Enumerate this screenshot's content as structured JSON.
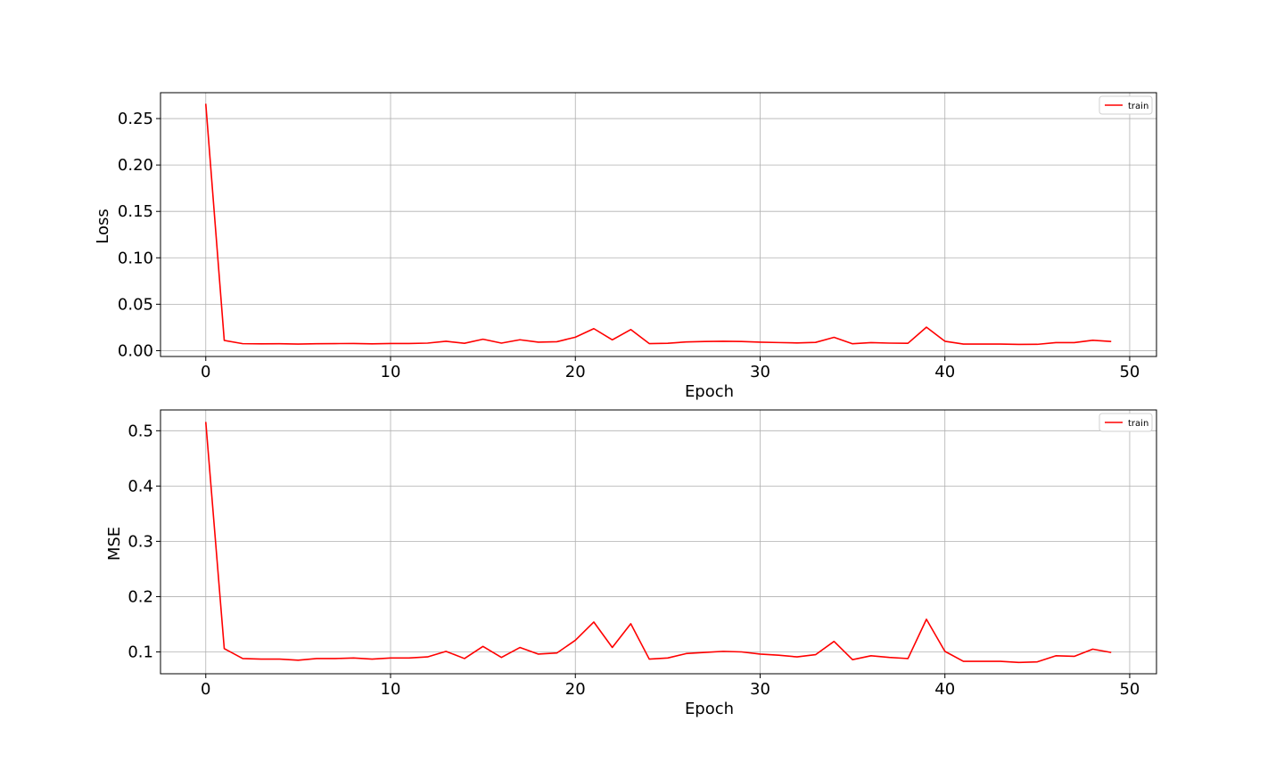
{
  "figure": {
    "background": "#ffffff"
  },
  "chart_data": [
    {
      "type": "line",
      "title": "",
      "xlabel": "Epoch",
      "ylabel": "Loss",
      "xlim": [
        -2.45,
        51.45
      ],
      "ylim": [
        -0.0063,
        0.2779
      ],
      "xticks": [
        0,
        10,
        20,
        30,
        40,
        50
      ],
      "xtick_labels": [
        "0",
        "10",
        "20",
        "30",
        "40",
        "50"
      ],
      "yticks": [
        0.0,
        0.05,
        0.1,
        0.15,
        0.2,
        0.25
      ],
      "ytick_labels": [
        "0.00",
        "0.05",
        "0.10",
        "0.15",
        "0.20",
        "0.25"
      ],
      "grid": true,
      "legend_position": "top-right",
      "series": [
        {
          "name": "train",
          "color": "#ff0000",
          "x": [
            0,
            1,
            2,
            3,
            4,
            5,
            6,
            7,
            8,
            9,
            10,
            11,
            12,
            13,
            14,
            15,
            16,
            17,
            18,
            19,
            20,
            21,
            22,
            23,
            24,
            25,
            26,
            27,
            28,
            29,
            30,
            31,
            32,
            33,
            34,
            35,
            36,
            37,
            38,
            39,
            40,
            41,
            42,
            43,
            44,
            45,
            46,
            47,
            48,
            49
          ],
          "values": [
            0.266,
            0.011,
            0.0075,
            0.0073,
            0.0074,
            0.0071,
            0.0074,
            0.0076,
            0.0077,
            0.0073,
            0.0077,
            0.0077,
            0.0081,
            0.0101,
            0.0079,
            0.0123,
            0.0081,
            0.0117,
            0.0091,
            0.0096,
            0.0145,
            0.0237,
            0.0116,
            0.0227,
            0.0076,
            0.0079,
            0.0094,
            0.0098,
            0.0101,
            0.0098,
            0.0091,
            0.0087,
            0.0083,
            0.0089,
            0.0143,
            0.0074,
            0.0086,
            0.0081,
            0.0079,
            0.0253,
            0.0101,
            0.0071,
            0.0071,
            0.0071,
            0.0067,
            0.0068,
            0.0086,
            0.0086,
            0.0112,
            0.0098
          ]
        }
      ]
    },
    {
      "type": "line",
      "title": "",
      "xlabel": "Epoch",
      "ylabel": "MSE",
      "xlim": [
        -2.45,
        51.45
      ],
      "ylim": [
        0.0605,
        0.5376
      ],
      "xticks": [
        0,
        10,
        20,
        30,
        40,
        50
      ],
      "xtick_labels": [
        "0",
        "10",
        "20",
        "30",
        "40",
        "50"
      ],
      "yticks": [
        0.1,
        0.2,
        0.3,
        0.4,
        0.5
      ],
      "ytick_labels": [
        "0.1",
        "0.2",
        "0.3",
        "0.4",
        "0.5"
      ],
      "grid": true,
      "legend_position": "top-right",
      "series": [
        {
          "name": "train",
          "color": "#ff0000",
          "x": [
            0,
            1,
            2,
            3,
            4,
            5,
            6,
            7,
            8,
            9,
            10,
            11,
            12,
            13,
            14,
            15,
            16,
            17,
            18,
            19,
            20,
            21,
            22,
            23,
            24,
            25,
            26,
            27,
            28,
            29,
            30,
            31,
            32,
            33,
            34,
            35,
            36,
            37,
            38,
            39,
            40,
            41,
            42,
            43,
            44,
            45,
            46,
            47,
            48,
            49
          ],
          "values": [
            0.516,
            0.106,
            0.088,
            0.087,
            0.087,
            0.085,
            0.088,
            0.088,
            0.089,
            0.087,
            0.089,
            0.089,
            0.091,
            0.101,
            0.088,
            0.11,
            0.09,
            0.108,
            0.096,
            0.098,
            0.121,
            0.154,
            0.108,
            0.151,
            0.087,
            0.089,
            0.097,
            0.099,
            0.101,
            0.1,
            0.096,
            0.094,
            0.091,
            0.095,
            0.119,
            0.086,
            0.093,
            0.09,
            0.088,
            0.159,
            0.101,
            0.083,
            0.083,
            0.083,
            0.081,
            0.082,
            0.093,
            0.092,
            0.105,
            0.099
          ]
        }
      ]
    }
  ]
}
